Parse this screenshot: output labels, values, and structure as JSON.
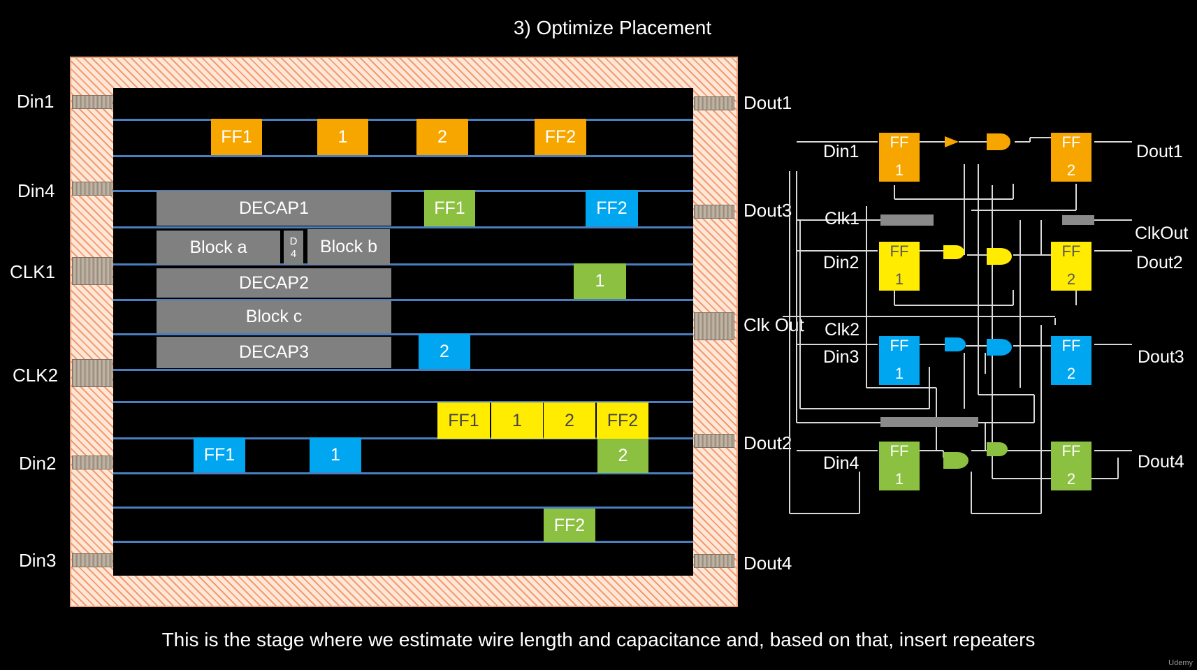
{
  "title": "3) Optimize Placement",
  "caption": "This is the stage where we estimate wire length and capacitance and, based on that, insert repeaters",
  "watermark": "Udemy",
  "colors": {
    "orange": "#f7a600",
    "green": "#8cc040",
    "blue": "#00a6f0",
    "yellow": "#ffec00",
    "gray": "#808080",
    "rail": "#4a7fbf"
  },
  "layout": {
    "pins_left": [
      "Din1",
      "Din4",
      "CLK1",
      "CLK2",
      "Din2",
      "Din3"
    ],
    "pins_right": [
      "Dout1",
      "Dout3",
      "Clk Out",
      "Dout2",
      "Dout4"
    ],
    "blocks": {
      "decap1": "DECAP1",
      "block_a": "Block a",
      "d4_top": "D",
      "d4_bottom": "4",
      "block_b": "Block b",
      "decap2": "DECAP2",
      "block_c": "Block c",
      "decap3": "DECAP3"
    },
    "orange_cells": [
      "FF1",
      "1",
      "2",
      "FF2"
    ],
    "green_cells": [
      "FF1",
      "1",
      "2",
      "FF2"
    ],
    "blue_cells": [
      "FF2",
      "2",
      "FF1",
      "1"
    ],
    "yellow_cells": [
      "FF1",
      "1",
      "2",
      "FF2"
    ]
  },
  "schematic": {
    "inputs": [
      "Din1",
      "Clk1",
      "Din2",
      "Clk2",
      "Din3",
      "Din4"
    ],
    "outputs": [
      "Dout1",
      "ClkOut",
      "Dout2",
      "Dout3",
      "Dout4"
    ],
    "ff_top": "FF",
    "ff1_num": "1",
    "ff2_num": "2"
  }
}
